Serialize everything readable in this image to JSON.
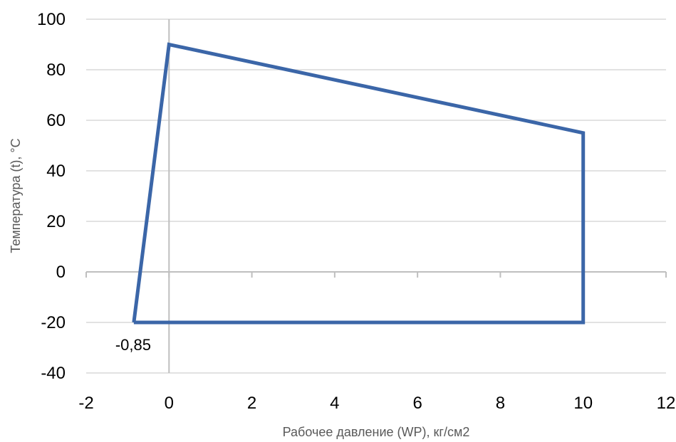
{
  "chart_data": {
    "type": "line",
    "title": "",
    "xlabel": "Рабочее давление (WP), кг/см2",
    "ylabel": "Температура (t), °C",
    "xlim": [
      -2,
      12
    ],
    "ylim": [
      -40,
      100
    ],
    "x_ticks": [
      -2,
      0,
      2,
      4,
      6,
      8,
      10,
      12
    ],
    "y_ticks": [
      -40,
      -20,
      0,
      20,
      40,
      60,
      80,
      100
    ],
    "grid": "horizontal",
    "legend": "none",
    "series": [
      {
        "color": "#3b66a8",
        "closed": true,
        "points": [
          [
            -0.85,
            -20
          ],
          [
            0,
            90
          ],
          [
            10,
            55
          ],
          [
            10,
            -20
          ],
          [
            -0.85,
            -20
          ]
        ]
      }
    ],
    "annotations": [
      {
        "text": "-0,85",
        "x": -0.85,
        "y": -20
      }
    ]
  }
}
